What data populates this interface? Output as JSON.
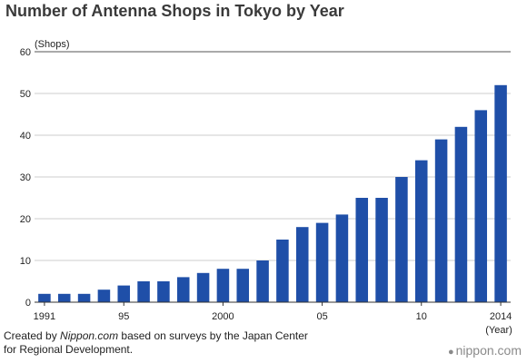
{
  "header": {
    "title": "Number of Antenna Shops in Tokyo by Year"
  },
  "caption": {
    "prefix": "Created by ",
    "source": "Nippon.com",
    "suffix": " based on surveys by the Japan Center",
    "line2": "for Regional Development."
  },
  "logo": {
    "icon": "nippon-dot-icon",
    "text": "nippon.com"
  },
  "colors": {
    "bar": "#1f4fa8",
    "grid": "#cccccc",
    "axis": "#333333"
  },
  "chart_data": {
    "type": "bar",
    "title": "Number of Antenna Shops in Tokyo by Year",
    "ylabel": "(Shops)",
    "xlabel": "(Year)",
    "ylim": [
      0,
      60
    ],
    "yticks": [
      0,
      10,
      20,
      30,
      40,
      50,
      60
    ],
    "grid": true,
    "categories": [
      1991,
      1992,
      1993,
      1994,
      1995,
      1996,
      1997,
      1998,
      1999,
      2000,
      2001,
      2002,
      2003,
      2004,
      2005,
      2006,
      2007,
      2008,
      2009,
      2010,
      2011,
      2012,
      2013,
      2014
    ],
    "tick_labels": [
      {
        "year": 1991,
        "label": "1991"
      },
      {
        "year": 1995,
        "label": "95"
      },
      {
        "year": 2000,
        "label": "2000"
      },
      {
        "year": 2005,
        "label": "05"
      },
      {
        "year": 2010,
        "label": "10"
      },
      {
        "year": 2014,
        "label": "2014"
      }
    ],
    "values": [
      2,
      2,
      2,
      3,
      4,
      5,
      5,
      6,
      7,
      8,
      8,
      10,
      15,
      18,
      19,
      21,
      25,
      25,
      30,
      34,
      39,
      42,
      46,
      52
    ]
  }
}
